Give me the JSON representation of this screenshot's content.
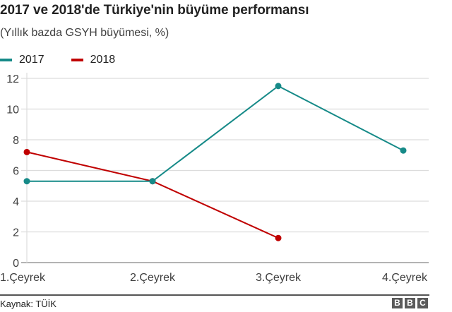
{
  "title": "2017 ve 2018'de Türkiye'nin büyüme performansı",
  "subtitle": "(Yıllık bazda GSYH büyümesi, %)",
  "legend": [
    {
      "label": "2017",
      "color": "#168a88"
    },
    {
      "label": "2018",
      "color": "#c00000"
    }
  ],
  "footer": {
    "source": "Kaynak: TÜİK",
    "logo_letters": [
      "B",
      "B",
      "C"
    ]
  },
  "chart_data": {
    "type": "line",
    "title": "2017 ve 2018'de Türkiye'nin büyüme performansı",
    "subtitle": "(Yıllık bazda GSYH büyümesi, %)",
    "categories": [
      "1.Çeyrek",
      "2.Çeyrek",
      "3.Çeyrek",
      "4.Çeyrek"
    ],
    "series": [
      {
        "name": "2017",
        "color": "#168a88",
        "values": [
          5.3,
          5.3,
          11.5,
          7.3
        ]
      },
      {
        "name": "2018",
        "color": "#c00000",
        "values": [
          7.2,
          5.3,
          1.6,
          null
        ]
      }
    ],
    "xlabel": "",
    "ylabel": "",
    "ylim": [
      0,
      12
    ],
    "yticks": [
      0,
      2,
      4,
      6,
      8,
      10,
      12
    ],
    "grid": true,
    "legend_position": "top-left",
    "source": "Kaynak: TÜİK"
  }
}
